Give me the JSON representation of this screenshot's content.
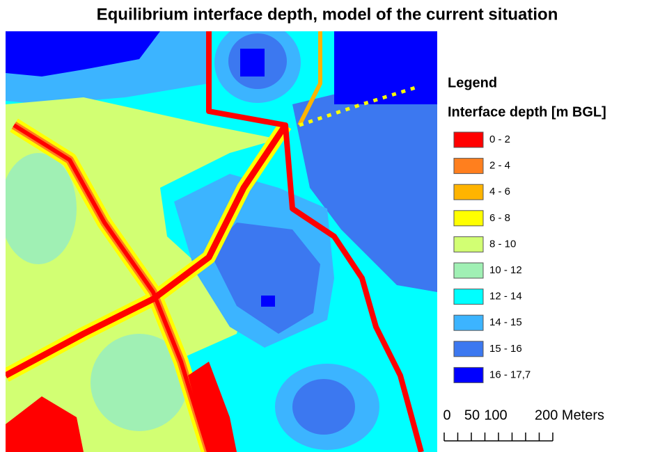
{
  "title": "Equilibrium interface depth, model of the current situation",
  "legend": {
    "heading": "Legend",
    "title": "Interface depth [m BGL]",
    "classes": [
      {
        "label": "0 - 2",
        "color": "#ff0000"
      },
      {
        "label": "2 - 4",
        "color": "#ff7f1e"
      },
      {
        "label": "4 - 6",
        "color": "#ffb400"
      },
      {
        "label": "6 - 8",
        "color": "#ffff00"
      },
      {
        "label": "8 - 10",
        "color": "#d2ff73"
      },
      {
        "label": "10 - 12",
        "color": "#a0f0b4"
      },
      {
        "label": "12 - 14",
        "color": "#00ffff"
      },
      {
        "label": "14 - 15",
        "color": "#3cb4ff"
      },
      {
        "label": "15 - 16",
        "color": "#3c78f0"
      },
      {
        "label": "16 - 17,7",
        "color": "#0000ff"
      }
    ]
  },
  "scale_bar": {
    "labels": [
      "0",
      "50",
      "100",
      "200 Meters"
    ]
  }
}
